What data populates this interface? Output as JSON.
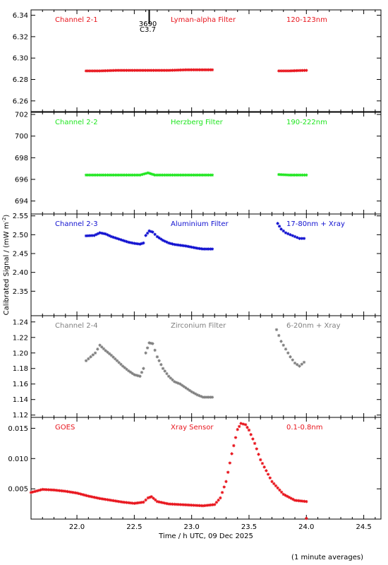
{
  "chart_data": {
    "type": "scatter",
    "xlabel": "Time / h UTC, 09 Dec 2025",
    "ylabel": "Calibrated Signal / (mW m",
    "ylabel_sup": "-2",
    "ylabel_close": ")",
    "xlim": [
      21.6,
      24.65
    ],
    "xticks": [
      "22.0",
      "22.5",
      "23.0",
      "23.5",
      "24.0",
      "24.5"
    ],
    "xtick_values": [
      22.0,
      22.5,
      23.0,
      23.5,
      24.0,
      24.5
    ],
    "footnote": "(1 minute averages)",
    "flare_marker": {
      "x": 22.63,
      "label_top": "3690",
      "label_bottom": "C3.7"
    },
    "panels": [
      {
        "channel": "Channel 2-1",
        "filter": "Lyman-alpha Filter",
        "band": "120-123nm",
        "color": "#e8141c",
        "ylim": [
          6.25,
          6.345
        ],
        "yticks": [
          "6.26",
          "6.28",
          "6.30",
          "6.32",
          "6.34"
        ],
        "ytick_values": [
          6.26,
          6.28,
          6.3,
          6.32,
          6.34
        ],
        "segments": [
          {
            "t": [
              22.08,
              22.2,
              22.35,
              22.5,
              22.65,
              22.8,
              22.95,
              23.05,
              23.18
            ],
            "v": [
              6.288,
              6.288,
              6.2885,
              6.2885,
              6.2885,
              6.2885,
              6.289,
              6.289,
              6.289
            ]
          },
          {
            "t": [
              23.76,
              23.85,
              23.93,
              24.0
            ],
            "v": [
              6.288,
              6.288,
              6.2883,
              6.2885
            ]
          }
        ]
      },
      {
        "channel": "Channel 2-2",
        "filter": "Herzberg Filter",
        "band": "190-222nm",
        "color": "#1ee61e",
        "ylim": [
          692.8,
          702.2
        ],
        "yticks": [
          "694",
          "696",
          "698",
          "700",
          "702"
        ],
        "ytick_values": [
          694,
          696,
          698,
          700,
          702
        ],
        "segments": [
          {
            "t": [
              22.08,
              22.3,
              22.55,
              22.62,
              22.68,
              22.85,
              23.0,
              23.18
            ],
            "v": [
              696.4,
              696.4,
              696.4,
              696.6,
              696.4,
              696.4,
              696.4,
              696.4
            ]
          },
          {
            "t": [
              23.76,
              23.85,
              23.93,
              24.0
            ],
            "v": [
              696.45,
              696.4,
              696.4,
              696.4
            ]
          }
        ]
      },
      {
        "channel": "Channel 2-3",
        "filter": "Aluminium Filter",
        "band": "17-80nm + Xray",
        "color": "#1010d0",
        "ylim": [
          2.285,
          2.555
        ],
        "yticks": [
          "2.35",
          "2.40",
          "2.45",
          "2.50",
          "2.55"
        ],
        "ytick_values": [
          2.35,
          2.4,
          2.45,
          2.5,
          2.55
        ],
        "segments": [
          {
            "t": [
              22.08,
              22.15,
              22.2,
              22.25,
              22.3,
              22.35,
              22.4,
              22.45,
              22.5,
              22.55,
              22.58,
              22.6,
              22.63,
              22.66,
              22.7,
              22.75,
              22.8,
              22.85,
              22.9,
              22.95,
              23.0,
              23.05,
              23.1,
              23.18
            ],
            "v": [
              2.497,
              2.498,
              2.505,
              2.502,
              2.495,
              2.49,
              2.485,
              2.48,
              2.477,
              2.475,
              2.478,
              2.498,
              2.51,
              2.507,
              2.495,
              2.485,
              2.478,
              2.474,
              2.472,
              2.47,
              2.467,
              2.464,
              2.462,
              2.462
            ]
          },
          {
            "t": [
              23.75,
              23.78,
              23.82,
              23.86,
              23.9,
              23.94,
              23.98
            ],
            "v": [
              2.53,
              2.515,
              2.505,
              2.5,
              2.495,
              2.49,
              2.49
            ]
          }
        ]
      },
      {
        "channel": "Channel 2-4",
        "filter": "Zirconium Filter",
        "band": "6-20nm + Xray",
        "color": "#808080",
        "ylim": [
          1.117,
          1.248
        ],
        "yticks": [
          "1.12",
          "1.14",
          "1.16",
          "1.18",
          "1.20",
          "1.22",
          "1.24"
        ],
        "ytick_values": [
          1.12,
          1.14,
          1.16,
          1.18,
          1.2,
          1.22,
          1.24
        ],
        "segments": [
          {
            "t": [
              22.08,
              22.12,
              22.16,
              22.2,
              22.25,
              22.3,
              22.35,
              22.4,
              22.45,
              22.5,
              22.55,
              22.58,
              22.6,
              22.63,
              22.66,
              22.7,
              22.75,
              22.8,
              22.85,
              22.9,
              22.95,
              23.0,
              23.05,
              23.1,
              23.18
            ],
            "v": [
              1.19,
              1.195,
              1.2,
              1.21,
              1.203,
              1.197,
              1.19,
              1.183,
              1.177,
              1.172,
              1.17,
              1.18,
              1.2,
              1.213,
              1.212,
              1.195,
              1.18,
              1.17,
              1.163,
              1.16,
              1.155,
              1.15,
              1.146,
              1.143,
              1.143
            ]
          },
          {
            "t": [
              23.74,
              23.78,
              23.82,
              23.86,
              23.9,
              23.94,
              23.98
            ],
            "v": [
              1.23,
              1.215,
              1.205,
              1.195,
              1.187,
              1.183,
              1.188
            ]
          }
        ]
      },
      {
        "channel": "GOES",
        "filter": "Xray Sensor",
        "band": "0.1-0.8nm",
        "color": "#e8141c",
        "ylim": [
          0.0,
          0.0168
        ],
        "yticks": [
          "0.005",
          "0.010",
          "0.015"
        ],
        "ytick_values": [
          0.005,
          0.01,
          0.015
        ],
        "segments": [
          {
            "t": [
              21.6,
              21.7,
              21.8,
              21.9,
              22.0,
              22.1,
              22.2,
              22.3,
              22.4,
              22.5,
              22.58,
              22.62,
              22.65,
              22.7,
              22.8,
              22.9,
              23.0,
              23.1,
              23.2,
              23.25,
              23.3,
              23.35,
              23.4,
              23.43,
              23.47,
              23.5,
              23.55,
              23.6,
              23.7,
              23.8,
              23.9,
              24.0
            ],
            "v": [
              0.0044,
              0.0049,
              0.0048,
              0.0046,
              0.0043,
              0.0038,
              0.0034,
              0.0031,
              0.0028,
              0.0026,
              0.0028,
              0.0035,
              0.0037,
              0.0029,
              0.0025,
              0.0024,
              0.0023,
              0.0022,
              0.0024,
              0.0035,
              0.0062,
              0.0108,
              0.0148,
              0.0158,
              0.0156,
              0.0147,
              0.0125,
              0.0098,
              0.0062,
              0.0041,
              0.0031,
              0.0029
            ]
          }
        ]
      }
    ]
  }
}
